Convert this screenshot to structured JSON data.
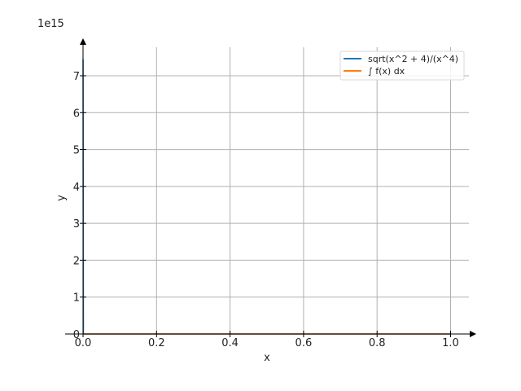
{
  "chart_data": {
    "type": "line",
    "xlabel": "x",
    "ylabel": "y",
    "y_offset_label": "1e15",
    "xlim": [
      0.0,
      1.05
    ],
    "ylim": [
      0,
      7.8
    ],
    "x_ticks": [
      0.0,
      0.2,
      0.4,
      0.6,
      0.8,
      1.0
    ],
    "x_tick_labels": [
      "0.0",
      "0.2",
      "0.4",
      "0.6",
      "0.8",
      "1.0"
    ],
    "y_ticks": [
      0,
      1,
      2,
      3,
      4,
      5,
      6,
      7
    ],
    "y_tick_labels": [
      "0",
      "1",
      "2",
      "3",
      "4",
      "5",
      "6",
      "7"
    ],
    "grid": true,
    "legend_position": "top-right",
    "series": [
      {
        "name": "sqrt(x^2 + 4)/(x^4)",
        "color": "#1f77b4",
        "x": [
          0.0001,
          0.001,
          0.01,
          0.1,
          0.2,
          0.4,
          0.6,
          0.8,
          1.0
        ],
        "y": [
          7.45,
          0.0,
          0.0,
          0.0,
          0.0,
          0.0,
          0.0,
          0.0,
          0.0
        ]
      },
      {
        "name": "∫ f(x) dx",
        "color": "#ff7f0e",
        "x": [
          0.0,
          0.2,
          0.4,
          0.6,
          0.8,
          1.0
        ],
        "y": [
          0.0,
          0.0,
          0.0,
          0.0,
          0.0,
          0.0
        ]
      }
    ]
  }
}
